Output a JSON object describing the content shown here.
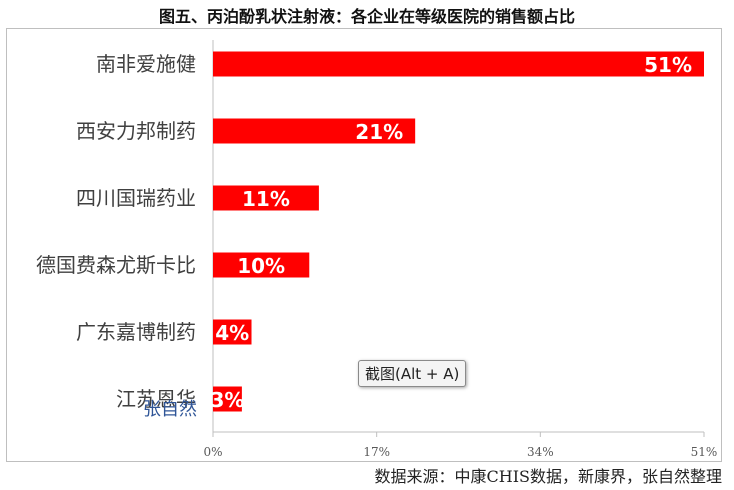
{
  "chart_data": {
    "type": "bar",
    "orientation": "horizontal",
    "title": "图五、丙泊酚乳状注射液：各企业在等级医院的销售额占比",
    "categories": [
      "南非爱施健",
      "西安力邦制药",
      "四川国瑞药业",
      "德国费森尤斯卡比",
      "广东嘉博制药",
      "江苏恩华"
    ],
    "values": [
      51,
      21,
      11,
      10,
      4,
      3
    ],
    "data_labels": [
      "51%",
      "21%",
      "11%",
      "10%",
      "4%",
      "3%"
    ],
    "xlim": [
      0,
      51
    ],
    "x_ticks": [
      "0%",
      "17%",
      "34%",
      "51%"
    ],
    "x_tick_values": [
      0,
      17,
      34,
      51
    ],
    "bar_color": "#ff0000",
    "grid": false,
    "legend": "none"
  },
  "source_note": "数据来源：中康CHIS数据，新康界，张自然整理",
  "tooltip": "截图(Alt + A)",
  "watermark": "张自然"
}
